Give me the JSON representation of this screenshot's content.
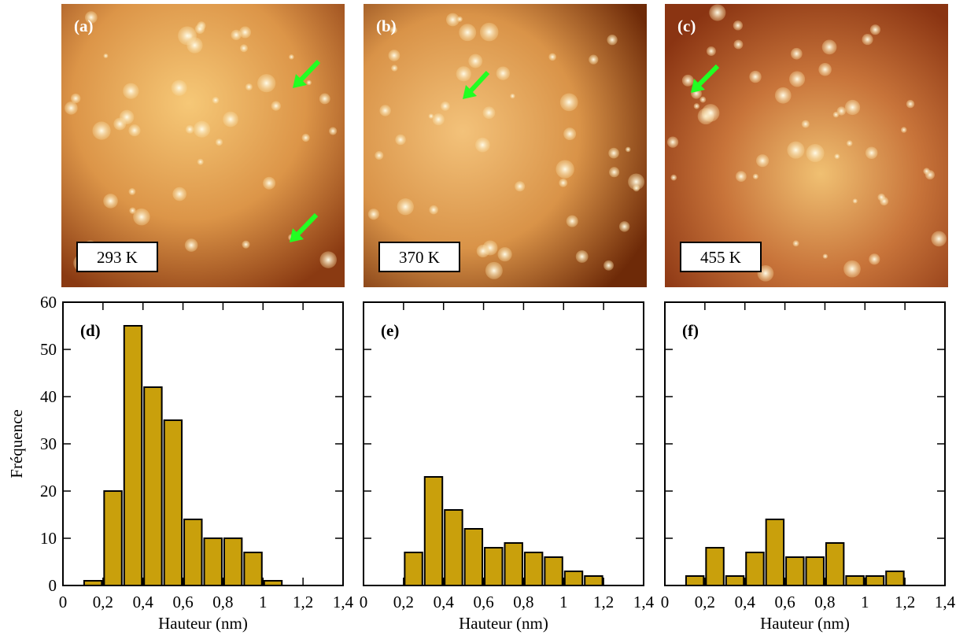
{
  "images": [
    {
      "label": "(a)",
      "temperature": "293 K"
    },
    {
      "label": "(b)",
      "temperature": "370 K"
    },
    {
      "label": "(c)",
      "temperature": "455 K"
    }
  ],
  "chart_data": [
    {
      "type": "histogram",
      "panel": "(d)",
      "xlabel": "Hauteur (nm)",
      "ylabel": "Fréquence",
      "color": "#c9a00c",
      "bins": [
        0.1,
        0.2,
        0.3,
        0.4,
        0.5,
        0.6,
        0.7,
        0.8,
        0.9,
        1.0,
        1.1
      ],
      "values": [
        1,
        20,
        55,
        42,
        35,
        14,
        10,
        10,
        7,
        1
      ],
      "xlim": [
        0,
        1.4
      ],
      "ylim": [
        0,
        60
      ],
      "xticks": [
        0,
        {
          "value": 0.2,
          "label": "0,2"
        },
        {
          "value": 0.4,
          "label": "0,4"
        },
        {
          "value": 0.6,
          "label": "0,6"
        },
        {
          "value": 0.8,
          "label": "0,8"
        },
        1,
        {
          "value": 1.2,
          "label": "1,2"
        },
        {
          "value": 1.4,
          "label": "1,4"
        }
      ],
      "yticks": [
        0,
        10,
        20,
        30,
        40,
        50,
        60
      ],
      "ytick_labels": true
    },
    {
      "type": "histogram",
      "panel": "(e)",
      "xlabel": "Hauteur (nm)",
      "color": "#c9a00c",
      "bins": [
        0.2,
        0.3,
        0.4,
        0.5,
        0.6,
        0.7,
        0.8,
        0.9,
        1.0,
        1.1,
        1.2
      ],
      "values": [
        7,
        23,
        16,
        12,
        8,
        9,
        7,
        6,
        3,
        2
      ],
      "xlim": [
        0,
        1.4
      ],
      "ylim": [
        0,
        60
      ],
      "xticks": [
        0,
        {
          "value": 0.2,
          "label": "0,2"
        },
        {
          "value": 0.4,
          "label": "0,4"
        },
        {
          "value": 0.6,
          "label": "0,6"
        },
        {
          "value": 0.8,
          "label": "0,8"
        },
        1,
        {
          "value": 1.2,
          "label": "1,2"
        },
        {
          "value": 1.4,
          "label": "1,4"
        }
      ],
      "yticks": [
        0,
        10,
        20,
        30,
        40,
        50,
        60
      ],
      "ytick_labels": false
    },
    {
      "type": "histogram",
      "panel": "(f)",
      "xlabel": "Hauteur (nm)",
      "color": "#c9a00c",
      "bins": [
        0.1,
        0.2,
        0.3,
        0.4,
        0.5,
        0.6,
        0.7,
        0.8,
        0.9,
        1.0,
        1.1,
        1.2
      ],
      "values": [
        2,
        8,
        2,
        7,
        14,
        6,
        6,
        9,
        2,
        2,
        3
      ],
      "xlim": [
        0,
        1.4
      ],
      "ylim": [
        0,
        60
      ],
      "xticks": [
        0,
        {
          "value": 0.2,
          "label": "0,2"
        },
        {
          "value": 0.4,
          "label": "0,4"
        },
        {
          "value": 0.6,
          "label": "0,6"
        },
        {
          "value": 0.8,
          "label": "0,8"
        },
        1,
        {
          "value": 1.2,
          "label": "1,2"
        },
        {
          "value": 1.4,
          "label": "1,4"
        }
      ],
      "yticks": [
        0,
        10,
        20,
        30,
        40,
        50,
        60
      ],
      "ytick_labels": false
    }
  ]
}
